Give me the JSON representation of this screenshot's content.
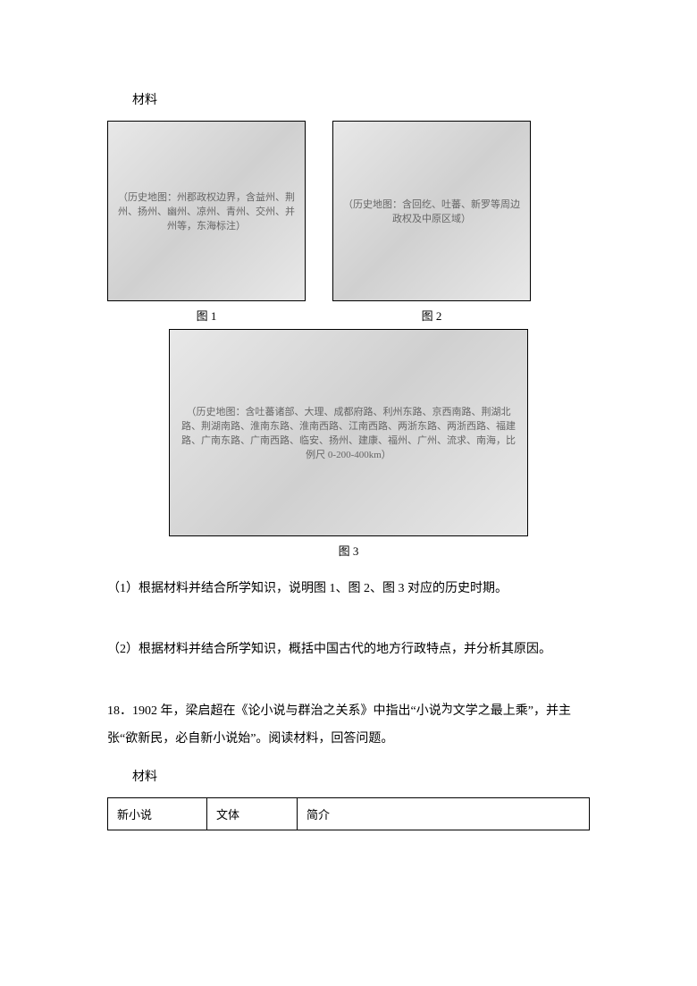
{
  "material_label": "材料",
  "maps": {
    "map1_caption": "图 1",
    "map2_caption": "图 2",
    "map3_caption": "图 3",
    "map1_desc": "（历史地图：州郡政权边界，含益州、荆州、扬州、幽州、凉州、青州、交州、并州等，东海标注）",
    "map2_desc": "（历史地图：含回纥、吐蕃、新罗等周边政权及中原区域）",
    "map3_desc": "（历史地图：含吐蕃诸部、大理、成都府路、利州东路、京西南路、荆湖北路、荆湖南路、淮南东路、淮南西路、江南西路、两浙东路、两浙西路、福建路、广南东路、广南西路、临安、扬州、建康、福州、广州、流求、南海，比例尺 0-200-400km）"
  },
  "q1": "（1）根据材料并结合所学知识，说明图 1、图 2、图 3 对应的历史时期。",
  "q2": "（2）根据材料并结合所学知识，概括中国古代的地方行政特点，并分析其原因。",
  "q18_num": "18．",
  "q18_text_a": "1902 年，梁启超在《论小说与群治之关系》中指出“小说",
  "q18_wei": "为",
  "q18_text_b": "文学之最上乘”，并主张“欲新民，必自新小说始”。阅读材料，回答问题。",
  "q18_material": "材料",
  "table": {
    "h1": "新小说",
    "h2": "文体",
    "h3": "简介"
  }
}
